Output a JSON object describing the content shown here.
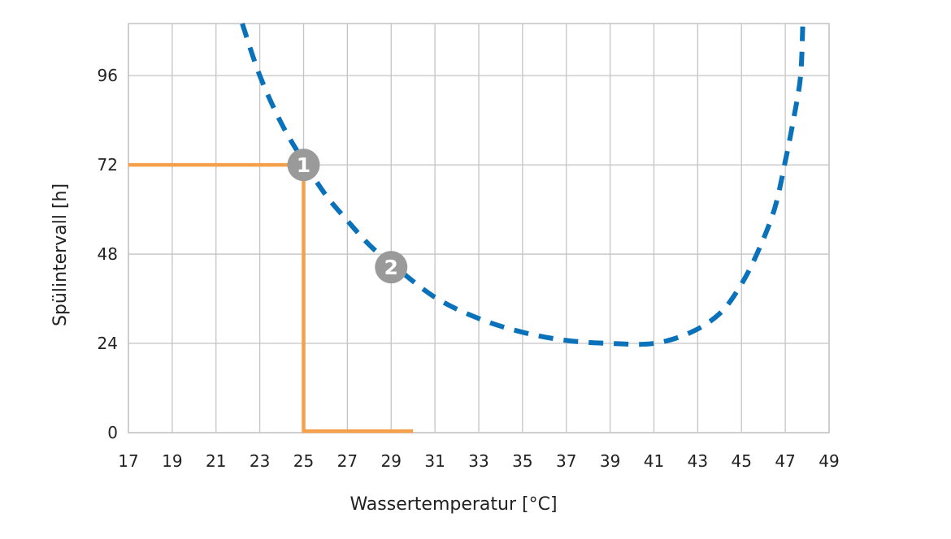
{
  "chart_data": {
    "type": "line",
    "xlabel": "Wassertemperatur [°C]",
    "ylabel": "Spülintervall [h]",
    "xlim": [
      17,
      49
    ],
    "ylim": [
      0,
      110
    ],
    "xticks": [
      17,
      19,
      21,
      23,
      25,
      27,
      29,
      31,
      33,
      35,
      37,
      39,
      41,
      43,
      45,
      47,
      49
    ],
    "yticks": [
      0,
      24,
      48,
      72,
      96
    ],
    "grid": true,
    "series": [
      {
        "style": "dashed",
        "color": "#0A72BA",
        "x": [
          22.2,
          23,
          24,
          25,
          26,
          27,
          28,
          29,
          31,
          33,
          35,
          37,
          39,
          41,
          42.7,
          44,
          44.9,
          45.7,
          46.5,
          47,
          47.4,
          47.7,
          47.8
        ],
        "y": [
          110,
          96,
          83,
          73,
          64,
          57,
          50.5,
          45.5,
          36.4,
          30.7,
          27,
          24.8,
          24,
          24,
          27,
          32,
          39,
          48,
          60,
          73,
          85,
          96,
          110
        ]
      },
      {
        "style": "solid",
        "color": "#F5A04A",
        "x": [
          17,
          25,
          25,
          30
        ],
        "y": [
          72,
          72,
          0.4,
          0.4
        ]
      }
    ],
    "annotations": [
      {
        "label": "1",
        "x": 25,
        "y": 72
      },
      {
        "label": "2",
        "x": 29,
        "y": 44.5
      }
    ],
    "marker_color": "#9A9A9A"
  }
}
